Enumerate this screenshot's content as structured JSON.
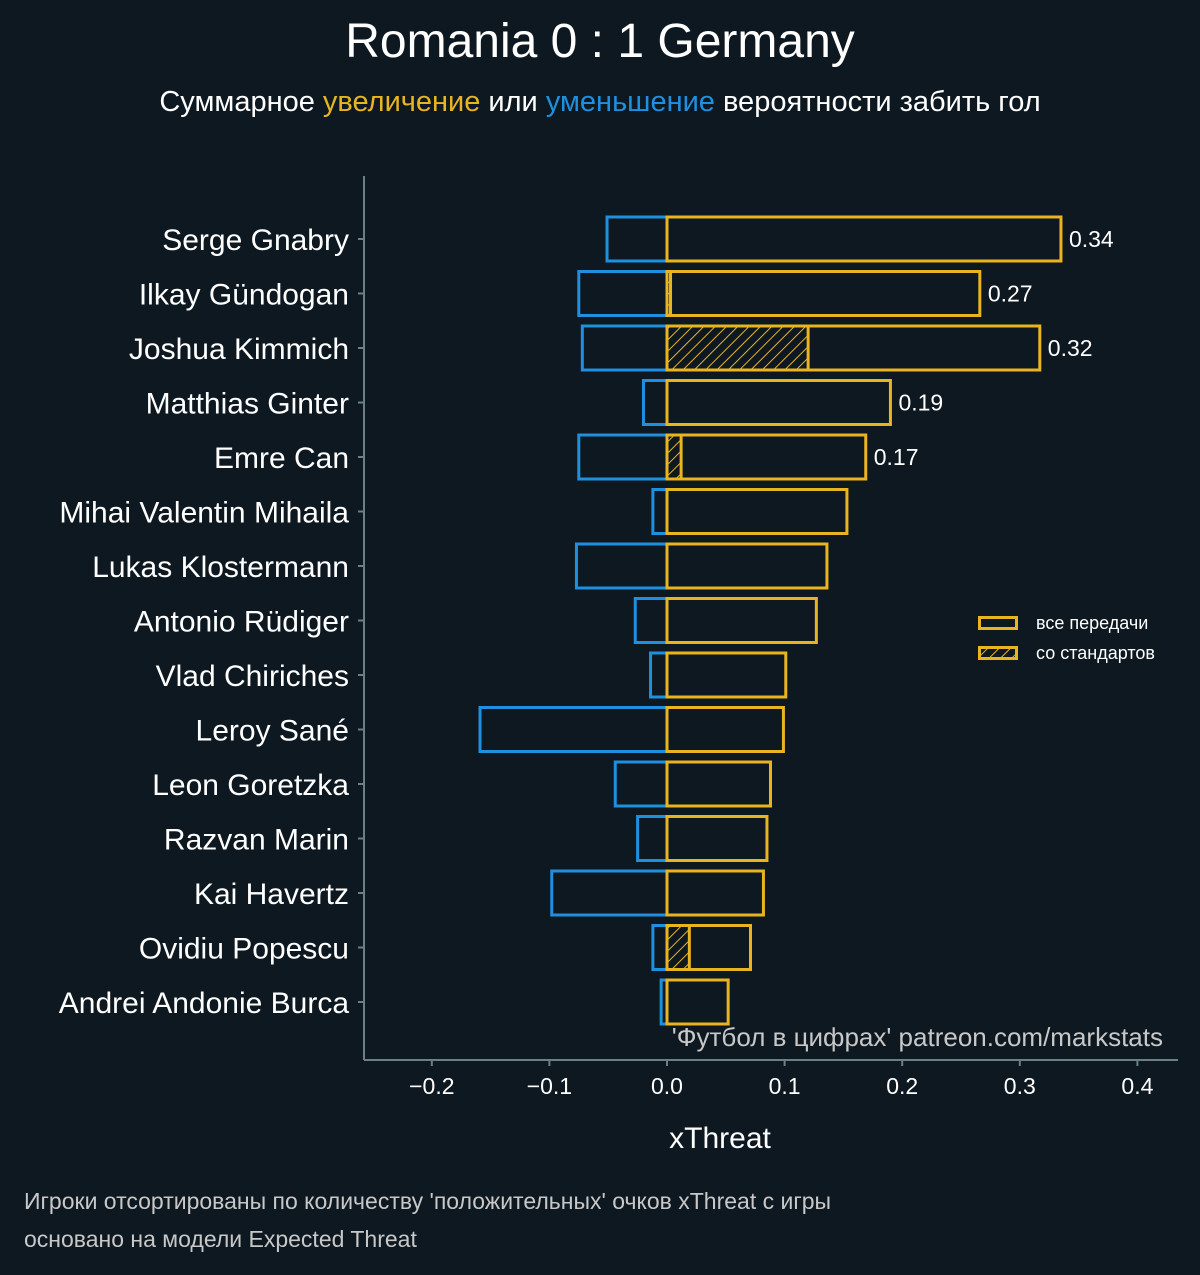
{
  "title": "Romania 0 : 1 Germany",
  "subtitle": {
    "prefix": "Суммарное ",
    "increase": "увеличение",
    "middle": " или ",
    "decrease": "уменьшение",
    "suffix": " вероятности забить гол"
  },
  "watermark": "'Футбол в цифрах' patreon.com/markstats",
  "legend": {
    "all_passes": "все передачи",
    "set_pieces": "со стандартов"
  },
  "footnotes": [
    "Игроки отсортированы по количеству 'положительных' очков xThreat с игры",
    "основано на модели Expected Threat"
  ],
  "colors": {
    "background": "#0e1820",
    "positive": "#e8b420",
    "negative": "#1f8fe0",
    "axis": "#6b7f87"
  },
  "chart_data": {
    "type": "bar",
    "orientation": "horizontal",
    "xlabel": "xThreat",
    "xlim": [
      -0.26,
      0.435
    ],
    "xticks": [
      -0.2,
      -0.1,
      0.0,
      0.1,
      0.2,
      0.3,
      0.4
    ],
    "xtick_labels": [
      "−0.2",
      "−0.1",
      "0.0",
      "0.1",
      "0.2",
      "0.3",
      "0.4"
    ],
    "categories": [
      "Serge Gnabry",
      "Ilkay Gündogan",
      "Joshua Kimmich",
      "Matthias Ginter",
      "Emre Can",
      "Mihai Valentin Mihaila",
      "Lukas Klostermann",
      "Antonio Rüdiger",
      "Vlad Chiriches",
      "Leroy Sané",
      "Leon Goretzka",
      "Razvan Marin",
      "Kai Havertz",
      "Ovidiu Popescu",
      "Andrei Andonie Burca"
    ],
    "series": [
      {
        "name": "positive (все передачи)",
        "values": [
          0.335,
          0.266,
          0.317,
          0.19,
          0.169,
          0.153,
          0.136,
          0.127,
          0.101,
          0.099,
          0.088,
          0.085,
          0.082,
          0.071,
          0.052
        ]
      },
      {
        "name": "negative",
        "values": [
          -0.051,
          -0.075,
          -0.072,
          -0.02,
          -0.075,
          -0.012,
          -0.077,
          -0.027,
          -0.014,
          -0.159,
          -0.044,
          -0.025,
          -0.098,
          -0.012,
          -0.005
        ]
      },
      {
        "name": "со стандартов",
        "values": [
          0,
          0.003,
          0.12,
          0,
          0.012,
          0,
          0,
          0,
          0,
          0,
          0,
          0,
          0,
          0.019,
          0
        ]
      }
    ],
    "value_labels": [
      "0.34",
      "0.27",
      "0.32",
      "0.19",
      "0.17",
      "",
      "",
      "",
      "",
      "",
      "",
      "",
      "",
      "",
      ""
    ]
  }
}
